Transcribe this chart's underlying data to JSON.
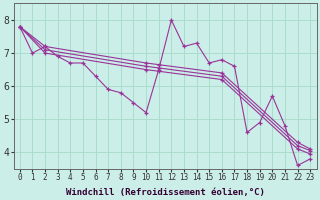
{
  "xlabel": "Windchill (Refroidissement éolien,°C)",
  "background_color": "#cceee8",
  "line_color": "#993399",
  "grid_color": "#aaddcc",
  "xlim": [
    -0.5,
    23.5
  ],
  "ylim": [
    3.5,
    8.5
  ],
  "yticks": [
    4,
    5,
    6,
    7,
    8
  ],
  "xticks": [
    0,
    1,
    2,
    3,
    4,
    5,
    6,
    7,
    8,
    9,
    10,
    11,
    12,
    13,
    14,
    15,
    16,
    17,
    18,
    19,
    20,
    21,
    22,
    23
  ],
  "series": [
    {
      "x": [
        0,
        1,
        2,
        3,
        4,
        5,
        6,
        7,
        8,
        9,
        10,
        11,
        12,
        13,
        14,
        15,
        16,
        17,
        18,
        19,
        20,
        21,
        22,
        23
      ],
      "y": [
        7.8,
        7.0,
        7.2,
        6.9,
        6.7,
        6.7,
        6.3,
        5.9,
        5.8,
        5.5,
        5.2,
        6.5,
        8.0,
        7.2,
        7.3,
        6.7,
        6.8,
        6.6,
        4.6,
        4.9,
        5.7,
        4.8,
        3.6,
        3.8
      ]
    },
    {
      "x": [
        0,
        2,
        10,
        11,
        16,
        22,
        23
      ],
      "y": [
        7.8,
        7.2,
        6.7,
        6.65,
        6.4,
        4.3,
        4.1
      ]
    },
    {
      "x": [
        0,
        2,
        10,
        11,
        16,
        22,
        23
      ],
      "y": [
        7.8,
        7.1,
        6.6,
        6.55,
        6.3,
        4.2,
        4.05
      ]
    },
    {
      "x": [
        0,
        2,
        10,
        11,
        16,
        22,
        23
      ],
      "y": [
        7.8,
        7.0,
        6.5,
        6.45,
        6.2,
        4.1,
        3.95
      ]
    }
  ],
  "fontsize_xlabel": 6.5,
  "fontsize_yticks": 7,
  "fontsize_xticks": 5.5
}
